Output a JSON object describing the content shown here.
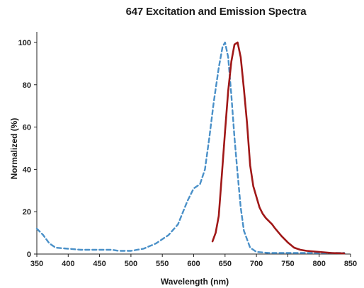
{
  "chart_data": {
    "type": "line",
    "title": "647 Excitation and Emission Spectra",
    "xlabel": "Wavelength (nm)",
    "ylabel": "Normalized (%)",
    "xlim": [
      350,
      850
    ],
    "ylim": [
      0,
      105
    ],
    "xticks": [
      350,
      400,
      450,
      500,
      550,
      600,
      650,
      700,
      750,
      800,
      850
    ],
    "yticks": [
      0,
      20,
      40,
      60,
      80,
      100
    ],
    "grid": false,
    "legend": "none",
    "series": [
      {
        "style": "dashed",
        "color": "#4a90c8",
        "points": [
          [
            350,
            12
          ],
          [
            360,
            9
          ],
          [
            370,
            5
          ],
          [
            380,
            3
          ],
          [
            400,
            2.5
          ],
          [
            420,
            2
          ],
          [
            450,
            2
          ],
          [
            470,
            2
          ],
          [
            480,
            1.5
          ],
          [
            500,
            1.5
          ],
          [
            520,
            2.5
          ],
          [
            540,
            5
          ],
          [
            560,
            9
          ],
          [
            575,
            14
          ],
          [
            590,
            25
          ],
          [
            600,
            31
          ],
          [
            610,
            33
          ],
          [
            618,
            40
          ],
          [
            625,
            55
          ],
          [
            632,
            72
          ],
          [
            640,
            88
          ],
          [
            646,
            98
          ],
          [
            650,
            100
          ],
          [
            655,
            93
          ],
          [
            660,
            75
          ],
          [
            665,
            55
          ],
          [
            670,
            38
          ],
          [
            675,
            22
          ],
          [
            680,
            11
          ],
          [
            690,
            3
          ],
          [
            700,
            1
          ],
          [
            720,
            0.5
          ],
          [
            750,
            0.5
          ],
          [
            800,
            0.5
          ],
          [
            840,
            0.5
          ]
        ]
      },
      {
        "style": "solid",
        "color": "#a01818",
        "points": [
          [
            630,
            6
          ],
          [
            635,
            10
          ],
          [
            640,
            18
          ],
          [
            645,
            38
          ],
          [
            650,
            58
          ],
          [
            655,
            77
          ],
          [
            660,
            91
          ],
          [
            665,
            99
          ],
          [
            670,
            100
          ],
          [
            675,
            93
          ],
          [
            680,
            78
          ],
          [
            685,
            62
          ],
          [
            690,
            42
          ],
          [
            695,
            32
          ],
          [
            700,
            27
          ],
          [
            705,
            22
          ],
          [
            710,
            19
          ],
          [
            715,
            17
          ],
          [
            720,
            15.5
          ],
          [
            725,
            14
          ],
          [
            730,
            12
          ],
          [
            740,
            8.5
          ],
          [
            750,
            5.5
          ],
          [
            760,
            3
          ],
          [
            770,
            2
          ],
          [
            780,
            1.5
          ],
          [
            800,
            1
          ],
          [
            820,
            0.5
          ],
          [
            840,
            0.3
          ]
        ]
      }
    ]
  }
}
